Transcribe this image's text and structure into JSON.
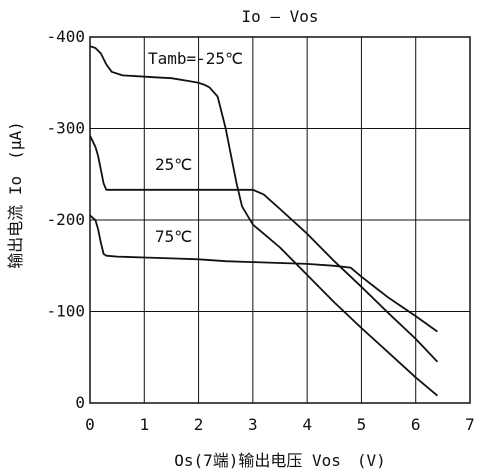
{
  "chart_data": {
    "type": "line",
    "title": "Io — Vos",
    "xlabel": "Os(7端)输出电压 Vos　(V)",
    "ylabel": "输出电流 Io　(μA)",
    "xlim": [
      0,
      7
    ],
    "ylim": [
      0,
      -400
    ],
    "xticks": [
      "0",
      "1",
      "2",
      "3",
      "4",
      "5",
      "6",
      "7"
    ],
    "yticks": [
      "0",
      "-100",
      "-200",
      "-300",
      "-400"
    ],
    "grid": true,
    "series": [
      {
        "name": "Tamb=-25℃",
        "x": [
          0,
          0.1,
          0.2,
          0.3,
          0.4,
          0.6,
          0.9,
          1.2,
          1.5,
          1.8,
          2.0,
          2.1,
          2.2,
          2.35,
          2.5,
          2.6,
          2.7,
          2.8,
          2.9,
          3.0,
          3.2,
          3.5,
          4.0,
          4.5,
          5.0,
          5.5,
          6.0,
          6.4
        ],
        "y": [
          -390,
          -388,
          -382,
          -370,
          -362,
          -358,
          -357,
          -356,
          -355,
          -352,
          -350,
          -348,
          -345,
          -335,
          -300,
          -270,
          -240,
          -215,
          -205,
          -195,
          -185,
          -170,
          -140,
          -110,
          -82,
          -55,
          -28,
          -8
        ]
      },
      {
        "name": "25℃",
        "x": [
          0,
          0.1,
          0.15,
          0.2,
          0.25,
          0.3,
          0.5,
          1.0,
          2.0,
          2.5,
          3.0,
          3.2,
          3.5,
          4.0,
          4.5,
          5.0,
          5.5,
          6.0,
          6.4
        ],
        "y": [
          -292,
          -280,
          -270,
          -255,
          -240,
          -233,
          -233,
          -233,
          -233,
          -233,
          -233,
          -228,
          -212,
          -185,
          -155,
          -127,
          -98,
          -70,
          -45
        ]
      },
      {
        "name": "75℃",
        "x": [
          0,
          0.1,
          0.15,
          0.2,
          0.25,
          0.3,
          0.5,
          1.0,
          1.5,
          2.0,
          2.5,
          3.0,
          3.5,
          4.0,
          4.5,
          4.8,
          5.0,
          5.5,
          6.0,
          6.4
        ],
        "y": [
          -205,
          -200,
          -190,
          -175,
          -163,
          -161,
          -160,
          -159,
          -158,
          -157,
          -155,
          -154,
          -153,
          -152,
          -150,
          -148,
          -138,
          -115,
          -95,
          -78
        ]
      }
    ],
    "annotations": [
      "Tamb=-25℃",
      "25℃",
      "75℃"
    ]
  }
}
